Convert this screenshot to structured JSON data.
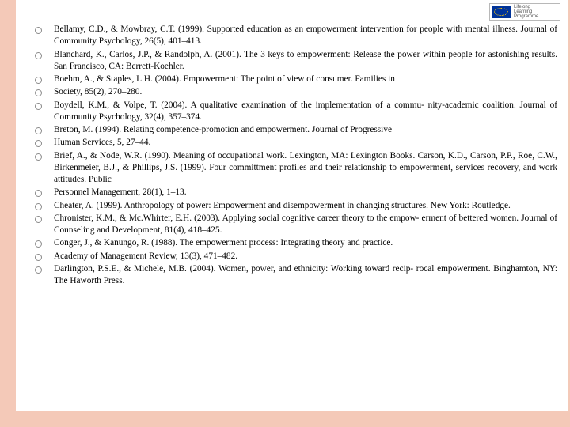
{
  "logo": {
    "line1": "Lifelong",
    "line2": "Learning",
    "line3": "Programme"
  },
  "references": [
    "Bellamy, C.D., & Mowbray, C.T. (1999). Supported education as an empowerment intervention for people with mental illness. Journal of Community Psychology, 26(5), 401–413.",
    "Blanchard, K., Carlos, J.P., & Randolph, A. (2001). The 3 keys to empowerment: Release the power within people for astonishing results. San Francisco, CA: Berrett-Koehler.",
    "Boehm, A., & Staples, L.H. (2004). Empowerment: The point of view of consumer. Families in",
    "Society, 85(2), 270–280.",
    "Boydell, K.M., & Volpe, T. (2004). A qualitative examination of the implementation of a commu- nity-academic coalition. Journal of Community Psychology, 32(4), 357–374.",
    "Breton, M. (1994). Relating competence-promotion and empowerment. Journal of Progressive",
    "Human Services, 5, 27–44.",
    "Brief, A., & Node, W.R. (1990). Meaning of occupational work. Lexington, MA: Lexington Books. Carson, K.D., Carson, P.P., Roe, C.W., Birkenmeier, B.J., & Phillips, J.S. (1999). Four committment profiles and their relationship to empowerment, services recovery, and work attitudes. Public",
    "Personnel Management, 28(1), 1–13.",
    "Cheater, A. (1999). Anthropology of power: Empowerment and disempowerment in changing structures. New York: Routledge.",
    "Chronister, K.M., & Mc.Whirter, E.H. (2003). Applying social cognitive career theory to the empow- erment of bettered women. Journal of Counseling and Development, 81(4), 418–425.",
    "Conger, J., & Kanungo, R. (1988). The empowerment process: Integrating theory and practice.",
    "Academy of Management Review, 13(3), 471–482.",
    "Darlington, P.S.E., & Michele, M.B. (2004). Women, power, and ethnicity: Working toward recip- rocal empowerment. Binghamton, NY: The Haworth Press."
  ],
  "style": {
    "border_color": "#f4c9b8",
    "bullet_border": "#8a8a8a",
    "text_color": "#000000",
    "font_size_pt": 11.3,
    "background_color": "#ffffff"
  }
}
